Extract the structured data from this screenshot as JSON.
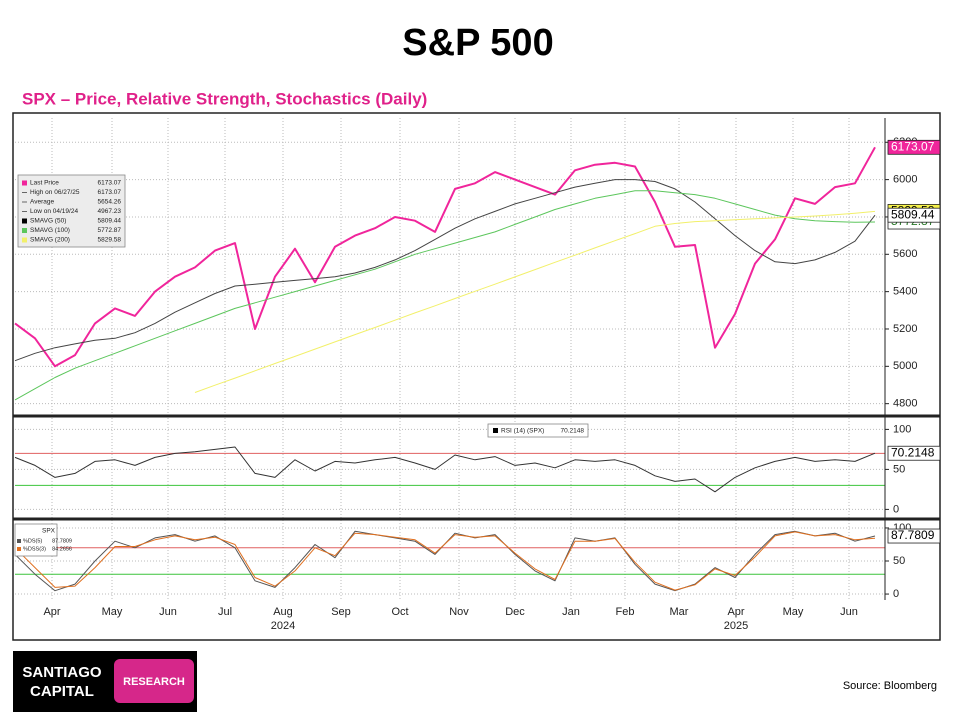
{
  "title": "S&P 500",
  "subtitle": "SPX – Price, Relative Strength, Stochastics (Daily)",
  "source": "Source:  Bloomberg",
  "logo": {
    "lines": [
      "SANTIAGO",
      "CAPITAL"
    ],
    "badge": "RESEARCH"
  },
  "x_axis": {
    "xlim": [
      0,
      43
    ],
    "xticks": [
      {
        "value": 1.85,
        "label": "Apr"
      },
      {
        "value": 4.85,
        "label": "May"
      },
      {
        "value": 7.65,
        "label": "Jun"
      },
      {
        "value": 10.5,
        "label": "Jul"
      },
      {
        "value": 13.4,
        "label": "Aug"
      },
      {
        "value": 16.3,
        "label": "Sep"
      },
      {
        "value": 19.25,
        "label": "Oct"
      },
      {
        "value": 22.2,
        "label": "Nov"
      },
      {
        "value": 25,
        "label": "Dec"
      },
      {
        "value": 27.8,
        "label": "Jan"
      },
      {
        "value": 30.5,
        "label": "Feb"
      },
      {
        "value": 33.2,
        "label": "Mar"
      },
      {
        "value": 36.05,
        "label": "Apr"
      },
      {
        "value": 38.9,
        "label": "May"
      },
      {
        "value": 41.7,
        "label": "Jun"
      }
    ],
    "years": [
      {
        "value": 13.4,
        "label": "2024"
      },
      {
        "value": 36.05,
        "label": "2025"
      }
    ]
  },
  "chart_data": [
    {
      "type": "line",
      "ylim": [
        4750,
        6330
      ],
      "yticks": [
        4800,
        5000,
        5200,
        5400,
        5600,
        5800,
        6000,
        6200
      ],
      "grid": true,
      "series": [
        {
          "name": "Last Price",
          "color": "#f0259b",
          "width": 2,
          "tag_fill": "#f0259b",
          "tag_text": "#ffffff",
          "values": [
            5230,
            5150,
            5000,
            5060,
            5230,
            5310,
            5270,
            5400,
            5480,
            5530,
            5620,
            5660,
            5200,
            5480,
            5630,
            5450,
            5640,
            5700,
            5740,
            5800,
            5780,
            5720,
            5950,
            5980,
            6040,
            6000,
            5960,
            5920,
            6050,
            6080,
            6090,
            6070,
            5880,
            5640,
            5650,
            5100,
            5280,
            5550,
            5680,
            5900,
            5870,
            5960,
            5980,
            6173.07
          ]
        },
        {
          "name": "SMAVG (50)",
          "color": "#444444",
          "width": 1,
          "tag_fill": "#ffffff",
          "tag_text": "#000000",
          "values": [
            5030,
            5070,
            5100,
            5120,
            5140,
            5150,
            5180,
            5230,
            5290,
            5340,
            5390,
            5430,
            5440,
            5450,
            5460,
            5470,
            5480,
            5500,
            5530,
            5570,
            5620,
            5680,
            5740,
            5790,
            5830,
            5870,
            5900,
            5930,
            5960,
            5980,
            6000,
            6000,
            5990,
            5950,
            5880,
            5790,
            5700,
            5620,
            5560,
            5550,
            5570,
            5610,
            5670,
            5809.44
          ]
        },
        {
          "name": "SMAVG (100)",
          "color": "#5cc65c",
          "width": 1,
          "tag_fill": "#ffffff",
          "tag_text": "#2a7a2a",
          "values": [
            4820,
            4880,
            4940,
            4990,
            5030,
            5070,
            5110,
            5150,
            5190,
            5230,
            5270,
            5310,
            5340,
            5370,
            5400,
            5430,
            5460,
            5490,
            5520,
            5560,
            5600,
            5630,
            5660,
            5690,
            5720,
            5760,
            5800,
            5840,
            5870,
            5900,
            5920,
            5940,
            5940,
            5930,
            5920,
            5900,
            5870,
            5840,
            5810,
            5790,
            5780,
            5775,
            5772,
            5772.87
          ]
        },
        {
          "name": "SMAVG (200)",
          "color": "#f2f06a",
          "width": 1,
          "tag_fill": "#f6f24a",
          "tag_text": "#000000",
          "values": [
            null,
            null,
            null,
            null,
            null,
            null,
            null,
            null,
            null,
            4860,
            4899,
            4937,
            4976,
            5015,
            5053,
            5092,
            5131,
            5170,
            5208,
            5247,
            5286,
            5324,
            5363,
            5402,
            5440,
            5479,
            5518,
            5557,
            5595,
            5634,
            5673,
            5711,
            5750,
            5765,
            5775,
            5780,
            5785,
            5790,
            5795,
            5800,
            5805,
            5812,
            5820,
            5829.58
          ]
        }
      ],
      "stats": [
        {
          "label": "High on 06/27/25",
          "value": 6173.07
        },
        {
          "label": "Average",
          "value": 5654.26
        },
        {
          "label": "Low on 04/19/24",
          "value": 4967.23
        }
      ]
    },
    {
      "type": "line",
      "ylim": [
        -7,
        113
      ],
      "yticks": [
        0,
        50,
        100
      ],
      "grid": true,
      "ref_lines": [
        {
          "value": 70,
          "color": "#e06060"
        },
        {
          "value": 30,
          "color": "#3cc43c"
        }
      ],
      "series": [
        {
          "name": "RSI (14) (SPX)",
          "color": "#333333",
          "width": 1,
          "tag_fill": "#ffffff",
          "tag_text": "#000000",
          "values": [
            65,
            55,
            40,
            45,
            60,
            62,
            55,
            65,
            70,
            72,
            75,
            78,
            45,
            40,
            62,
            48,
            60,
            58,
            62,
            65,
            58,
            50,
            68,
            62,
            66,
            55,
            58,
            52,
            62,
            60,
            62,
            55,
            42,
            35,
            38,
            22,
            40,
            52,
            60,
            65,
            60,
            62,
            60,
            70.2148
          ]
        }
      ]
    },
    {
      "type": "line",
      "title": "SPX",
      "ylim": [
        -9,
        109
      ],
      "yticks": [
        0,
        50,
        100
      ],
      "grid": true,
      "ref_lines": [
        {
          "value": 70,
          "color": "#e06060"
        },
        {
          "value": 30,
          "color": "#3cc43c"
        }
      ],
      "series": [
        {
          "name": "%DS(5)",
          "color": "#555555",
          "width": 1,
          "tag_fill": "#ffffff",
          "tag_text": "#000000",
          "values": [
            60,
            30,
            5,
            15,
            50,
            80,
            70,
            85,
            90,
            80,
            88,
            70,
            20,
            10,
            40,
            75,
            55,
            95,
            90,
            85,
            80,
            60,
            92,
            85,
            90,
            60,
            35,
            20,
            85,
            80,
            85,
            45,
            15,
            5,
            15,
            40,
            25,
            60,
            90,
            95,
            88,
            92,
            80,
            87.7809
          ]
        },
        {
          "name": "%DSS(3)",
          "color": "#e07020",
          "width": 1,
          "values": [
            70,
            40,
            10,
            12,
            40,
            72,
            72,
            82,
            88,
            82,
            86,
            75,
            25,
            12,
            35,
            70,
            58,
            92,
            90,
            86,
            82,
            62,
            90,
            86,
            88,
            62,
            38,
            22,
            80,
            80,
            84,
            48,
            18,
            6,
            14,
            38,
            28,
            56,
            88,
            94,
            88,
            90,
            82,
            84.2656
          ]
        }
      ]
    }
  ]
}
